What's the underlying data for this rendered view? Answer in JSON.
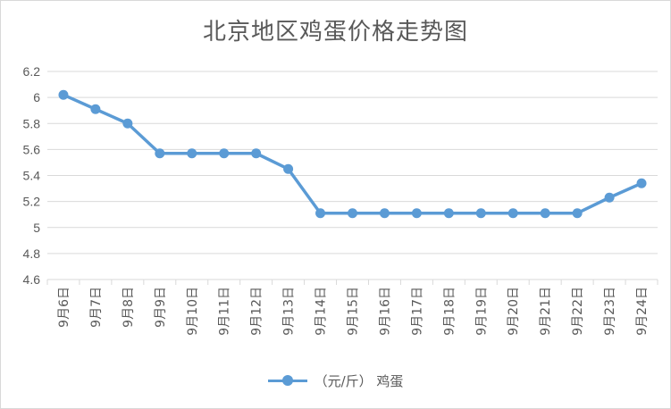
{
  "chart_data": {
    "type": "line",
    "title": "北京地区鸡蛋价格走势图",
    "categories": [
      "9月6日",
      "9月7日",
      "9月8日",
      "9月9日",
      "9月10日",
      "9月11日",
      "9月12日",
      "9月13日",
      "9月14日",
      "9月15日",
      "9月16日",
      "9月17日",
      "9月18日",
      "9月19日",
      "9月20日",
      "9月21日",
      "9月22日",
      "9月23日",
      "9月24日"
    ],
    "series": [
      {
        "name": "（元/斤） 鸡蛋",
        "values": [
          6.02,
          5.91,
          5.8,
          5.57,
          5.57,
          5.57,
          5.57,
          5.45,
          5.11,
          5.11,
          5.11,
          5.11,
          5.11,
          5.11,
          5.11,
          5.11,
          5.11,
          5.23,
          5.34
        ],
        "color": "#5b9bd5"
      }
    ],
    "xlabel": "",
    "ylabel": "",
    "ylim": [
      4.6,
      6.2
    ],
    "yticks": [
      "4.6",
      "4.8",
      "5",
      "5.2",
      "5.4",
      "5.6",
      "5.8",
      "6",
      "6.2"
    ],
    "grid": true,
    "legend_position": "bottom"
  }
}
